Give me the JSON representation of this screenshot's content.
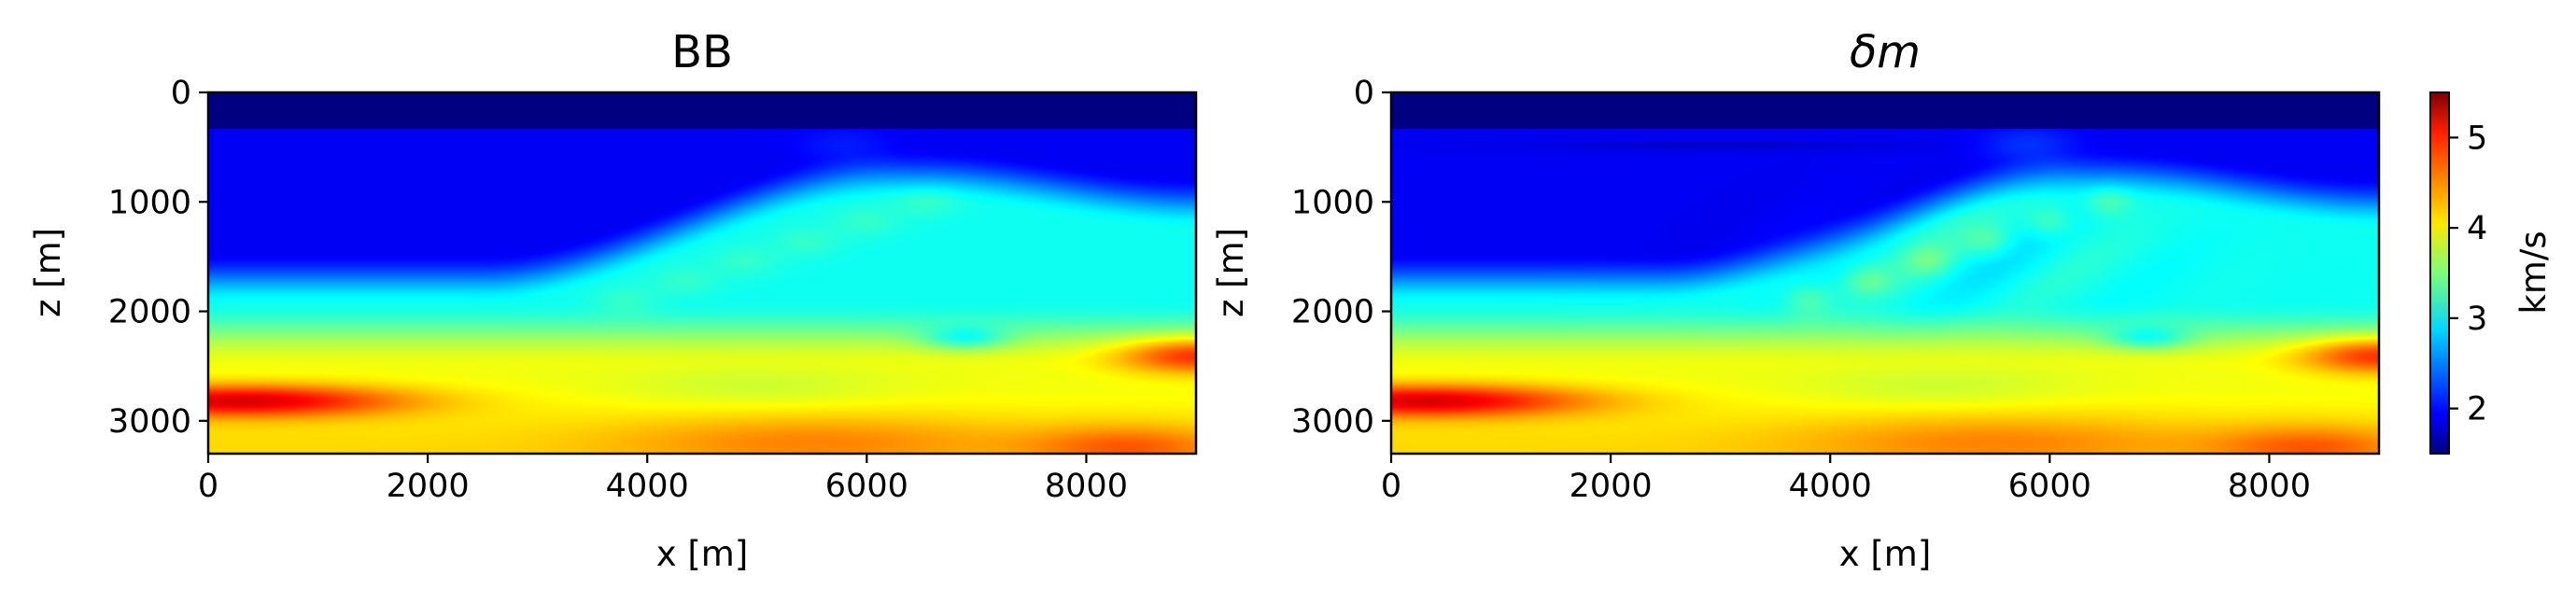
{
  "chart_data": [
    {
      "type": "heatmap",
      "title": "BB",
      "xlabel": "x [m]",
      "ylabel": "z [m]",
      "xlim": [
        0,
        9000
      ],
      "ylim": [
        3300,
        0
      ],
      "xticks": [
        "0",
        "2000",
        "4000",
        "6000",
        "8000"
      ],
      "yticks": [
        "0",
        "1000",
        "2000",
        "3000"
      ],
      "colormap": "jet"
    },
    {
      "type": "heatmap",
      "title": "δm",
      "xlabel": "x [m]",
      "ylabel": "z [m]",
      "xlim": [
        0,
        9000
      ],
      "ylim": [
        3300,
        0
      ],
      "xticks": [
        "0",
        "2000",
        "4000",
        "6000",
        "8000"
      ],
      "yticks": [
        "0",
        "1000",
        "2000",
        "3000"
      ],
      "colormap": "jet"
    }
  ],
  "colorbar": {
    "label": "km/s",
    "range": [
      1.5,
      5.5
    ],
    "ticks": [
      "2",
      "3",
      "4",
      "5"
    ]
  }
}
